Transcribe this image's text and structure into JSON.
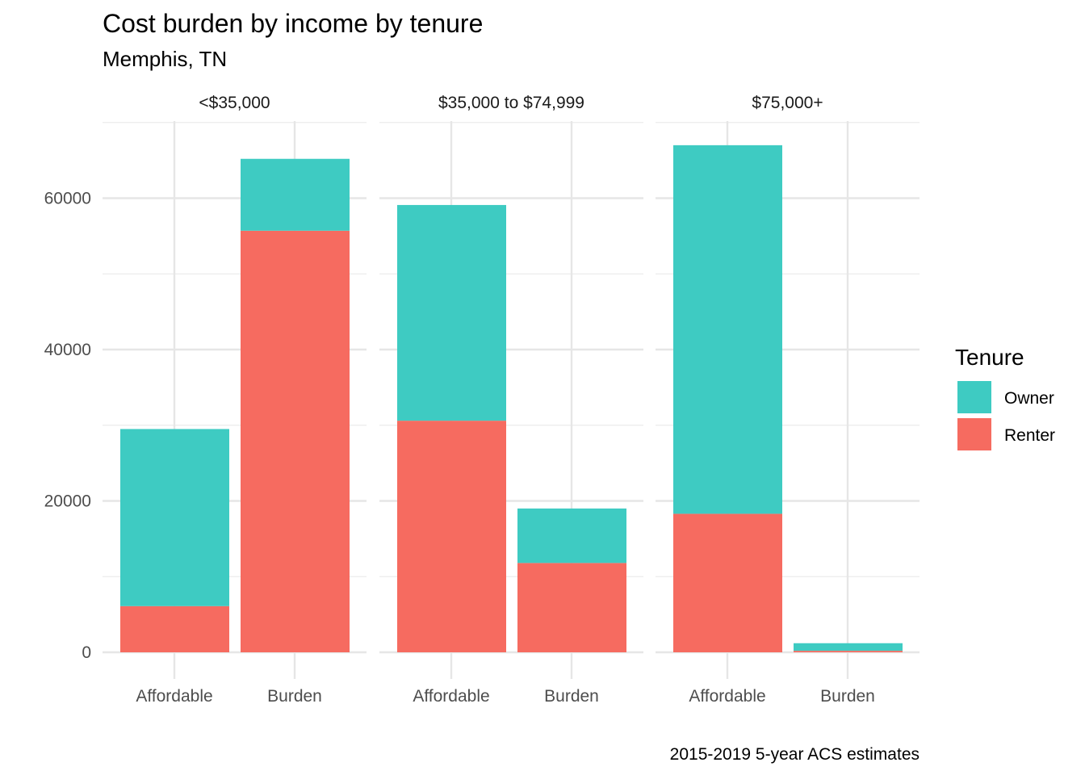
{
  "chart_data": {
    "type": "bar",
    "stacked": true,
    "faceted": true,
    "title": "Cost burden by income by tenure",
    "subtitle": "Memphis, TN",
    "caption": "2015-2019 5-year ACS estimates",
    "legend": {
      "title": "Tenure",
      "placement": "right",
      "entries": [
        {
          "name": "Owner",
          "color": "#3ECBC2"
        },
        {
          "name": "Renter",
          "color": "#F66B60"
        }
      ]
    },
    "ylim": [
      0,
      70000
    ],
    "y_ticks": [
      0,
      20000,
      40000,
      60000
    ],
    "y_minor_ticks": [
      10000,
      30000,
      50000,
      70000
    ],
    "y_tick_labels": [
      "0",
      "20000",
      "40000",
      "60000"
    ],
    "categories": [
      "Affordable",
      "Burden"
    ],
    "grid": true,
    "panels": [
      {
        "label": "<$35,000",
        "series": [
          {
            "name": "Renter",
            "values": [
              6100,
              55700
            ]
          },
          {
            "name": "Owner",
            "values": [
              23400,
              9500
            ]
          }
        ]
      },
      {
        "label": "$35,000 to $74,999",
        "series": [
          {
            "name": "Renter",
            "values": [
              30600,
              11800
            ]
          },
          {
            "name": "Owner",
            "values": [
              28500,
              7200
            ]
          }
        ]
      },
      {
        "label": "$75,000+",
        "series": [
          {
            "name": "Renter",
            "values": [
              18300,
              200
            ]
          },
          {
            "name": "Owner",
            "values": [
              48700,
              1000
            ]
          }
        ]
      }
    ]
  }
}
